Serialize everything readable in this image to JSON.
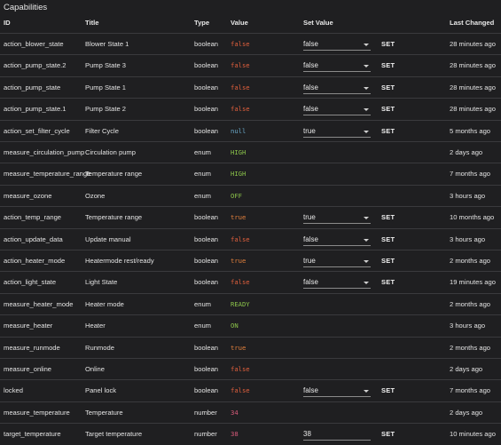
{
  "section_title": "Capabilities",
  "headers": {
    "id": "ID",
    "title": "Title",
    "type": "Type",
    "value": "Value",
    "set_value": "Set Value",
    "last_changed": "Last Changed"
  },
  "set_label": "SET",
  "rows": [
    {
      "id": "action_blower_state",
      "title": "Blower State 1",
      "type": "boolean",
      "value": "false",
      "control": "select",
      "set": "false",
      "changed": "28 minutes ago"
    },
    {
      "id": "action_pump_state.2",
      "title": "Pump State 3",
      "type": "boolean",
      "value": "false",
      "control": "select",
      "set": "false",
      "changed": "28 minutes ago"
    },
    {
      "id": "action_pump_state",
      "title": "Pump State 1",
      "type": "boolean",
      "value": "false",
      "control": "select",
      "set": "false",
      "changed": "28 minutes ago"
    },
    {
      "id": "action_pump_state.1",
      "title": "Pump State 2",
      "type": "boolean",
      "value": "false",
      "control": "select",
      "set": "false",
      "changed": "28 minutes ago"
    },
    {
      "id": "action_set_filter_cycle",
      "title": "Filter Cycle",
      "type": "boolean",
      "value": "null",
      "control": "select",
      "set": "true",
      "changed": "5 months ago"
    },
    {
      "id": "measure_circulation_pump",
      "title": "Circulation pump",
      "type": "enum",
      "value": "HIGH",
      "control": "none",
      "set": "",
      "changed": "2 days ago"
    },
    {
      "id": "measure_temperature_range",
      "title": "Temperature range",
      "type": "enum",
      "value": "HIGH",
      "control": "none",
      "set": "",
      "changed": "7 months ago"
    },
    {
      "id": "measure_ozone",
      "title": "Ozone",
      "type": "enum",
      "value": "OFF",
      "control": "none",
      "set": "",
      "changed": "3 hours ago"
    },
    {
      "id": "action_temp_range",
      "title": "Temperature range",
      "type": "boolean",
      "value": "true",
      "control": "select",
      "set": "true",
      "changed": "10 months ago"
    },
    {
      "id": "action_update_data",
      "title": "Update manual",
      "type": "boolean",
      "value": "false",
      "control": "select",
      "set": "false",
      "changed": "3 hours ago"
    },
    {
      "id": "action_heater_mode",
      "title": "Heatermode rest/ready",
      "type": "boolean",
      "value": "true",
      "control": "select",
      "set": "true",
      "changed": "2 months ago"
    },
    {
      "id": "action_light_state",
      "title": "Light State",
      "type": "boolean",
      "value": "false",
      "control": "select",
      "set": "false",
      "changed": "19 minutes ago"
    },
    {
      "id": "measure_heater_mode",
      "title": "Heater mode",
      "type": "enum",
      "value": "READY",
      "control": "none",
      "set": "",
      "changed": "2 months ago"
    },
    {
      "id": "measure_heater",
      "title": "Heater",
      "type": "enum",
      "value": "ON",
      "control": "none",
      "set": "",
      "changed": "3 hours ago"
    },
    {
      "id": "measure_runmode",
      "title": "Runmode",
      "type": "boolean",
      "value": "true",
      "control": "none",
      "set": "",
      "changed": "2 months ago"
    },
    {
      "id": "measure_online",
      "title": "Online",
      "type": "boolean",
      "value": "false",
      "control": "none",
      "set": "",
      "changed": "2 days ago"
    },
    {
      "id": "locked",
      "title": "Panel lock",
      "type": "boolean",
      "value": "false",
      "control": "select",
      "set": "false",
      "changed": "7 months ago"
    },
    {
      "id": "measure_temperature",
      "title": "Temperature",
      "type": "number",
      "value": "34",
      "control": "none",
      "set": "",
      "changed": "2 days ago"
    },
    {
      "id": "target_temperature",
      "title": "Target temperature",
      "type": "number",
      "value": "38",
      "control": "input",
      "set": "38",
      "changed": "10 minutes ago"
    }
  ]
}
